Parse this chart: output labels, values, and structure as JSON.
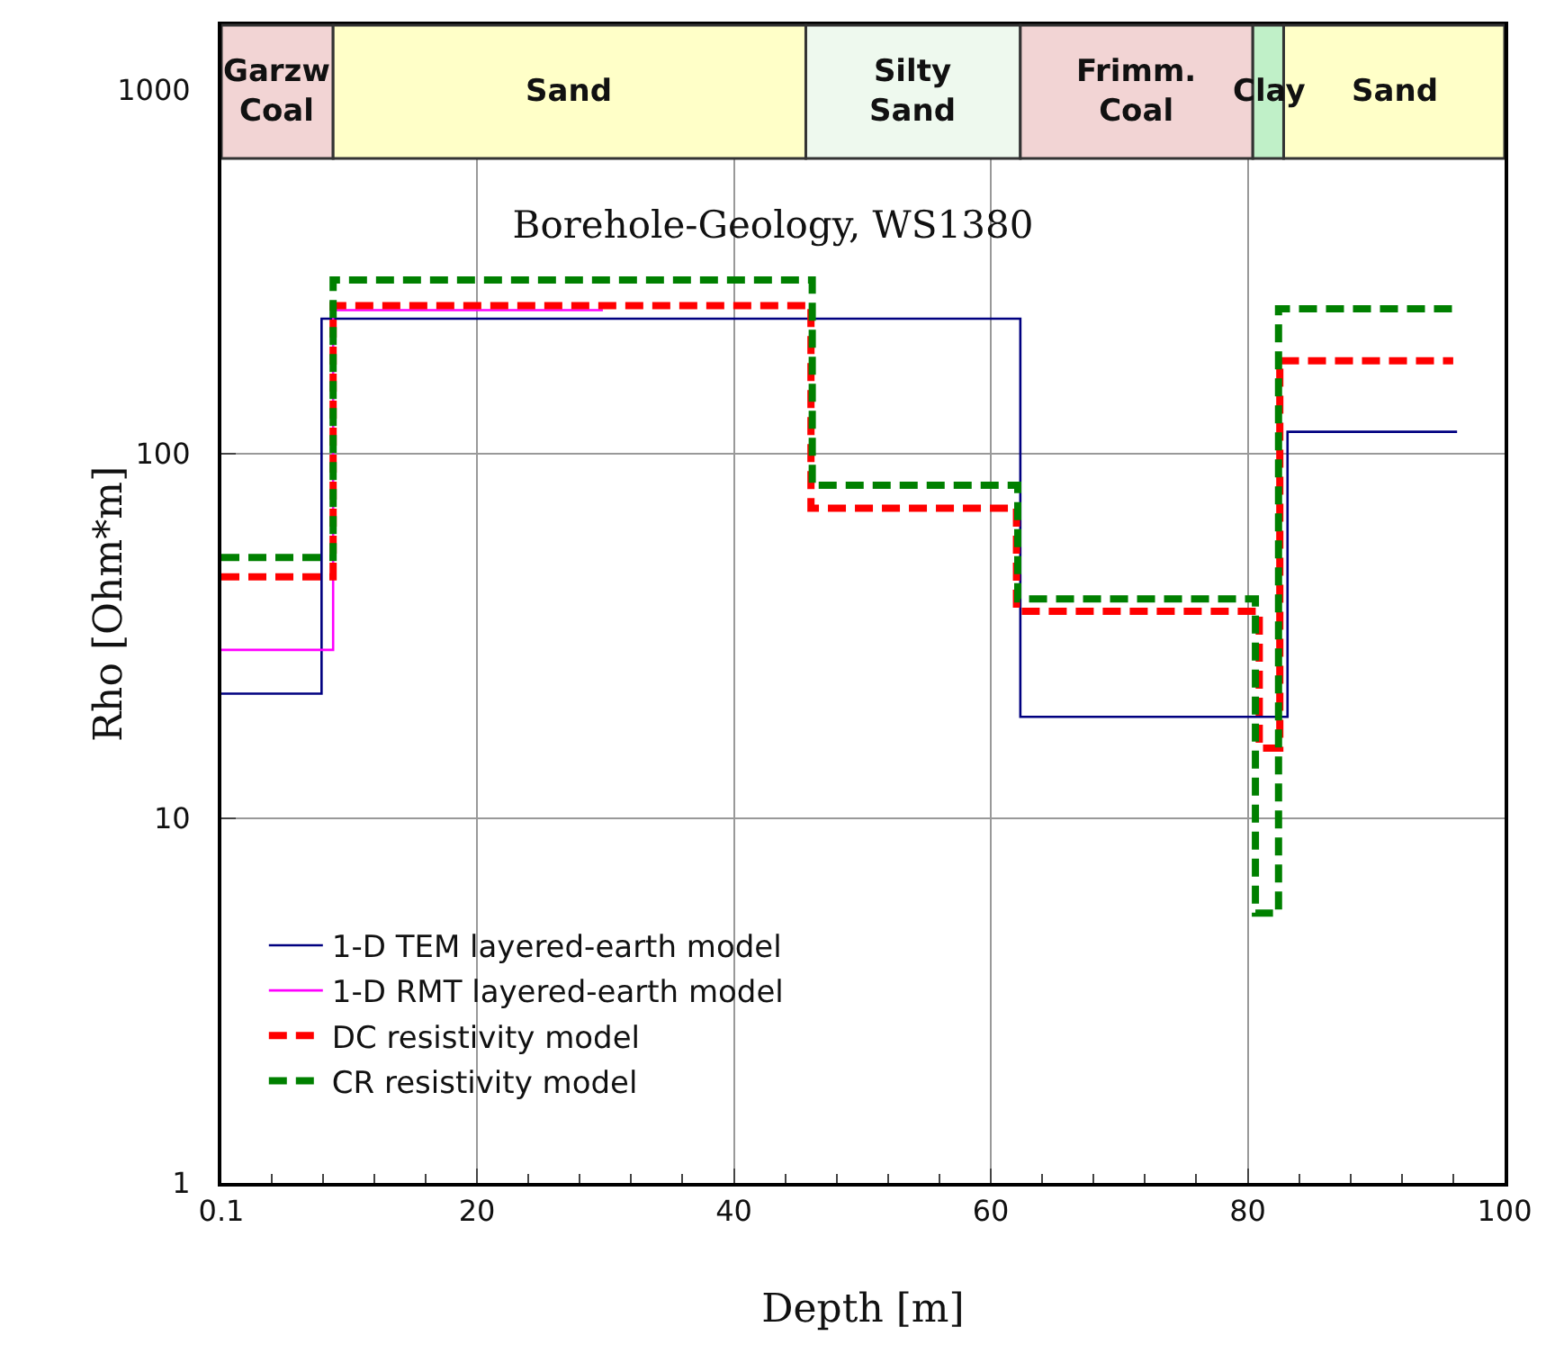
{
  "chart_data": {
    "type": "step",
    "title": "Borehole-Geology, WS1380",
    "xlabel": "Depth [m]",
    "ylabel": "Rho [Ohm*m]",
    "xlim": [
      0.1,
      100
    ],
    "xticks": [
      0.1,
      20,
      40,
      60,
      80,
      100
    ],
    "ylim": [
      1,
      1500
    ],
    "yticks": [
      1,
      10,
      100,
      1000
    ],
    "log": "y",
    "grid": true,
    "legend": "bottom left",
    "series": [
      {
        "name": "1-D TEM layered-earth model",
        "color": "#000080",
        "line_style": "solid",
        "x": [
          0.1,
          7.9,
          62.3,
          83.1,
          96.3
        ],
        "values": [
          22,
          235,
          19,
          115,
          115
        ]
      },
      {
        "name": "1-D RMT layered-earth model",
        "color": "#ff00ff",
        "line_style": "solid",
        "x": [
          0.1,
          8.8,
          29.8
        ],
        "values": [
          29,
          248,
          248
        ]
      },
      {
        "name": "DC resistivity model",
        "color": "#ff0000",
        "line_style": "dashed",
        "x": [
          0.1,
          8.8,
          46.0,
          62.0,
          80.9,
          82.5,
          96
        ],
        "values": [
          46,
          255,
          71,
          37,
          15.6,
          180,
          180
        ]
      },
      {
        "name": "CR resistivity model",
        "color": "#008000",
        "line_style": "dashed",
        "x": [
          0.1,
          8.8,
          46.1,
          62.1,
          80.6,
          82.4,
          96
        ],
        "values": [
          52,
          300,
          82,
          40,
          5.5,
          250,
          250
        ]
      }
    ],
    "bands": [
      {
        "axis": "x",
        "from": 0.1,
        "to": 8.8,
        "label": "Garzw\nCoal",
        "color": "#f2d4d4"
      },
      {
        "axis": "x",
        "from": 8.8,
        "to": 45.6,
        "label": "Sand",
        "color": "#ffffc8"
      },
      {
        "axis": "x",
        "from": 45.6,
        "to": 62.3,
        "label": "Silty\nSand",
        "color": "#eef9ee"
      },
      {
        "axis": "x",
        "from": 62.3,
        "to": 80.4,
        "label": "Frimm.\nCoal",
        "color": "#f2d4d4"
      },
      {
        "axis": "x",
        "from": 80.4,
        "to": 82.8,
        "label": "Clay",
        "color": "#c0f0c8"
      },
      {
        "axis": "x",
        "from": 82.8,
        "to": 100,
        "label": "Sand",
        "color": "#ffffc8"
      }
    ]
  }
}
